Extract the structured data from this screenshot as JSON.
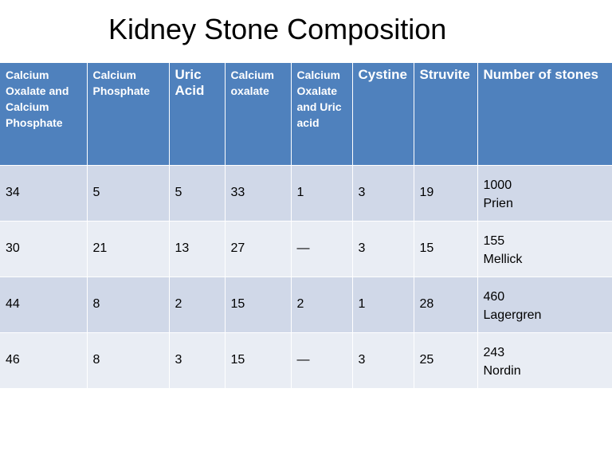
{
  "title": "Kidney Stone Composition",
  "table": {
    "headers": [
      "Calcium Oxalate and Calcium Phosphate",
      "Calcium Phosphate",
      "Uric Acid",
      "Calcium oxalate",
      "Calcium Oxalate and Uric acid",
      "Cystine",
      "Struvite",
      "Number of stones"
    ],
    "rows": [
      {
        "cells": [
          "34",
          "5",
          "5",
          "33",
          "1",
          "3",
          "19"
        ],
        "count": "1000",
        "author": "Prien"
      },
      {
        "cells": [
          "30",
          "21",
          "13",
          "27",
          "—",
          "3",
          "15"
        ],
        "count": "155",
        "author": "Mellick"
      },
      {
        "cells": [
          "44",
          "8",
          "2",
          "15",
          "2",
          "1",
          "28"
        ],
        "count": "460",
        "author": "Lagergren"
      },
      {
        "cells": [
          "46",
          "8",
          "3",
          "15",
          "—",
          "3",
          "25"
        ],
        "count": "243",
        "author": "Nordin"
      }
    ]
  }
}
